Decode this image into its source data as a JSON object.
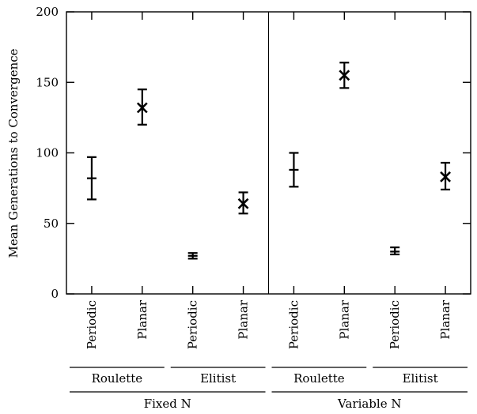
{
  "chart_data": {
    "type": "scatter",
    "title": "",
    "ylabel": "Mean Generations to Convergence",
    "ylim": [
      0,
      200
    ],
    "yticks": [
      0,
      50,
      100,
      150,
      200
    ],
    "error_bars": true,
    "grid": false,
    "legend": "none",
    "points": [
      {
        "label": "Periodic",
        "mean": 82,
        "low": 67,
        "high": 97,
        "marker": "plus"
      },
      {
        "label": "Planar",
        "mean": 132,
        "low": 120,
        "high": 145,
        "marker": "cross"
      },
      {
        "label": "Periodic",
        "mean": 27,
        "low": 25,
        "high": 29,
        "marker": "plus"
      },
      {
        "label": "Planar",
        "mean": 64,
        "low": 57,
        "high": 72,
        "marker": "cross"
      },
      {
        "label": "Periodic",
        "mean": 88,
        "low": 76,
        "high": 100,
        "marker": "plus"
      },
      {
        "label": "Planar",
        "mean": 155,
        "low": 146,
        "high": 164,
        "marker": "cross"
      },
      {
        "label": "Periodic",
        "mean": 30,
        "low": 28,
        "high": 33,
        "marker": "plus"
      },
      {
        "label": "Planar",
        "mean": 83,
        "low": 74,
        "high": 93,
        "marker": "cross"
      }
    ],
    "selection_groups": [
      {
        "label": "Roulette",
        "points": [
          0,
          1
        ]
      },
      {
        "label": "Elitist",
        "points": [
          2,
          3
        ]
      },
      {
        "label": "Roulette",
        "points": [
          4,
          5
        ]
      },
      {
        "label": "Elitist",
        "points": [
          6,
          7
        ]
      }
    ],
    "population_groups": [
      {
        "label": "Fixed N",
        "points": [
          0,
          3
        ]
      },
      {
        "label": "Variable N",
        "points": [
          4,
          7
        ]
      }
    ]
  }
}
